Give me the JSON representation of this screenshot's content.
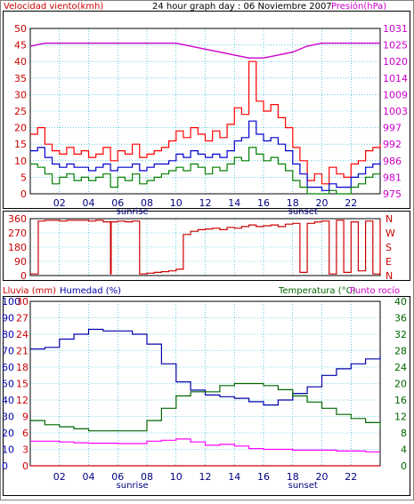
{
  "header": {
    "wind_label": "Velocidad viento(kmh)",
    "title": "24 hour graph day : 06 Noviembre 2007",
    "pressure_label": "Presión(hPa)"
  },
  "lower_header": {
    "rain_label": "Lluvia (mm)",
    "humidity_label": "Humedad (%)",
    "temp_label": "Temperatura (°C)",
    "dew_label": "Punto rocío"
  },
  "colors": {
    "wind_gust": "#ff0000",
    "wind_avg": "#0000cc",
    "wind_min": "#008000",
    "pressure": "#cc00cc",
    "direction": "#cc0000",
    "humidity": "#0000aa",
    "temperature": "#006600",
    "dew_point": "#ff00ff",
    "rain": "#cc0000",
    "grid": "#00aacc",
    "frame": "#000000"
  },
  "chart_data": [
    {
      "type": "line",
      "id": "wind-pressure",
      "x_ticks": [
        "02",
        "04",
        "06",
        "08",
        "10",
        "12",
        "14",
        "16",
        "18",
        "20",
        "22"
      ],
      "x_sub_labels": [
        {
          "text": "sunrise",
          "at_hour": 7.0
        },
        {
          "text": "sunset",
          "at_hour": 18.7
        }
      ],
      "x_range": [
        0,
        24
      ],
      "left_axis": {
        "label": "Velocidad viento(kmh)",
        "ticks": [
          0,
          5,
          10,
          15,
          20,
          25,
          30,
          35,
          40,
          45,
          50
        ],
        "range": [
          0,
          50
        ]
      },
      "right_axis": {
        "label": "Presión(hPa)",
        "ticks": [
          975,
          981,
          986,
          992,
          997,
          1003,
          1009,
          1014,
          1020,
          1025,
          1031
        ],
        "range": [
          975,
          1031
        ]
      },
      "series": [
        {
          "role": "gust",
          "axis": "left",
          "x": [
            0,
            0.5,
            1,
            1.5,
            2,
            2.5,
            3,
            3.5,
            4,
            4.5,
            5,
            5.5,
            6,
            6.5,
            7,
            7.5,
            8,
            8.5,
            9,
            9.5,
            10,
            10.5,
            11,
            11.5,
            12,
            12.5,
            13,
            13.5,
            14,
            14.5,
            15,
            15.5,
            16,
            16.5,
            17,
            17.5,
            18,
            18.5,
            19,
            19.5,
            20,
            20.5,
            21,
            21.5,
            22,
            22.5,
            23,
            23.5,
            24
          ],
          "y": [
            18,
            20,
            15,
            13,
            12,
            14,
            12,
            13,
            11,
            12,
            14,
            10,
            13,
            12,
            15,
            11,
            12,
            13,
            14,
            16,
            19,
            17,
            20,
            18,
            16,
            19,
            17,
            21,
            26,
            24,
            40,
            28,
            25,
            27,
            23,
            20,
            14,
            10,
            4,
            6,
            3,
            8,
            6,
            5,
            9,
            10,
            13,
            14,
            15
          ]
        },
        {
          "role": "average",
          "axis": "left",
          "x": [
            0,
            0.5,
            1,
            1.5,
            2,
            2.5,
            3,
            3.5,
            4,
            4.5,
            5,
            5.5,
            6,
            6.5,
            7,
            7.5,
            8,
            8.5,
            9,
            9.5,
            10,
            10.5,
            11,
            11.5,
            12,
            12.5,
            13,
            13.5,
            14,
            14.5,
            15,
            15.5,
            16,
            16.5,
            17,
            17.5,
            18,
            18.5,
            19,
            19.5,
            20,
            20.5,
            21,
            21.5,
            22,
            22.5,
            23,
            23.5,
            24
          ],
          "y": [
            13,
            14,
            11,
            9,
            8,
            9,
            8,
            8,
            7,
            8,
            9,
            7,
            8,
            8,
            9,
            7,
            8,
            9,
            9,
            10,
            12,
            11,
            13,
            12,
            11,
            12,
            11,
            13,
            16,
            17,
            22,
            18,
            16,
            17,
            15,
            13,
            9,
            6,
            2,
            2,
            1,
            3,
            2,
            2,
            5,
            6,
            8,
            9,
            10
          ]
        },
        {
          "role": "minimum",
          "axis": "left",
          "x": [
            0,
            0.5,
            1,
            1.5,
            2,
            2.5,
            3,
            3.5,
            4,
            4.5,
            5,
            5.5,
            6,
            6.5,
            7,
            7.5,
            8,
            8.5,
            9,
            9.5,
            10,
            10.5,
            11,
            11.5,
            12,
            12.5,
            13,
            13.5,
            14,
            14.5,
            15,
            15.5,
            16,
            16.5,
            17,
            17.5,
            18,
            18.5,
            19,
            19.5,
            20,
            20.5,
            21,
            21.5,
            22,
            22.5,
            23,
            23.5,
            24
          ],
          "y": [
            9,
            8,
            6,
            3,
            5,
            6,
            4,
            5,
            4,
            5,
            6,
            2,
            5,
            4,
            6,
            3,
            4,
            5,
            6,
            7,
            8,
            7,
            9,
            8,
            6,
            8,
            7,
            9,
            11,
            10,
            14,
            12,
            10,
            11,
            9,
            7,
            4,
            2,
            0,
            0,
            0,
            1,
            0,
            0,
            2,
            3,
            5,
            6,
            6
          ]
        },
        {
          "role": "pressure",
          "axis": "right",
          "x": [
            0,
            1,
            2,
            3,
            4,
            5,
            6,
            7,
            8,
            9,
            10,
            11,
            12,
            13,
            14,
            15,
            16,
            17,
            18,
            19,
            20,
            21,
            22,
            23,
            24
          ],
          "y": [
            1025,
            1026,
            1026,
            1026,
            1026,
            1026,
            1026,
            1026,
            1026,
            1026,
            1026,
            1025,
            1024,
            1023,
            1022,
            1021,
            1021,
            1022,
            1023,
            1025,
            1026,
            1026,
            1026,
            1026,
            1026
          ]
        }
      ]
    },
    {
      "type": "line",
      "id": "wind-direction",
      "x_range": [
        0,
        24
      ],
      "left_axis": {
        "ticks": [
          0,
          90,
          180,
          270,
          360
        ],
        "range": [
          0,
          360
        ]
      },
      "right_axis": {
        "ticks": [
          "N",
          "W",
          "S",
          "E",
          "N"
        ]
      },
      "series": [
        {
          "role": "direction",
          "x": [
            0,
            0.5,
            0.55,
            1,
            1.5,
            2,
            2.5,
            3,
            3.5,
            4,
            4.5,
            5,
            5.5,
            5.55,
            6,
            6.5,
            7,
            7.5,
            8,
            8.5,
            9,
            9.5,
            10,
            10.5,
            11,
            11.5,
            12,
            12.5,
            13,
            13.5,
            14,
            14.5,
            15,
            15.5,
            16,
            16.5,
            17,
            17.5,
            18,
            18.5,
            19,
            19.5,
            20,
            20.5,
            21,
            21.5,
            22,
            22.5,
            23,
            23.5,
            24
          ],
          "y": [
            10,
            10,
            345,
            350,
            350,
            345,
            350,
            350,
            350,
            345,
            350,
            340,
            10,
            340,
            345,
            340,
            345,
            10,
            15,
            20,
            25,
            30,
            40,
            260,
            280,
            290,
            295,
            300,
            290,
            305,
            300,
            310,
            320,
            310,
            315,
            320,
            310,
            325,
            330,
            20,
            330,
            340,
            345,
            10,
            350,
            20,
            340,
            30,
            345,
            10,
            350
          ]
        }
      ]
    },
    {
      "type": "line",
      "id": "humidity-temperature",
      "x_ticks": [
        "02",
        "04",
        "06",
        "08",
        "10",
        "12",
        "14",
        "16",
        "18",
        "20",
        "22"
      ],
      "x_sub_labels": [
        {
          "text": "sunrise",
          "at_hour": 7.0
        },
        {
          "text": "sunset",
          "at_hour": 18.7
        }
      ],
      "x_range": [
        0,
        24
      ],
      "left_axis_rain": {
        "label": "Lluvia (mm)",
        "ticks": [
          0,
          3,
          6,
          9,
          12,
          15,
          18,
          21,
          24,
          27,
          30
        ],
        "range": [
          0,
          30
        ]
      },
      "left_axis_humidity": {
        "label": "Humedad (%)",
        "ticks": [
          0,
          10,
          20,
          30,
          40,
          50,
          60,
          70,
          80,
          90,
          100
        ],
        "range": [
          0,
          100
        ]
      },
      "right_axis": {
        "label": "Temperatura (°C)",
        "ticks": [
          0,
          4,
          8,
          12,
          16,
          20,
          24,
          28,
          32,
          36,
          40
        ],
        "range": [
          0,
          40
        ]
      },
      "series": [
        {
          "role": "humidity",
          "axis": "humidity",
          "x": [
            0,
            1,
            2,
            3,
            4,
            5,
            6,
            7,
            8,
            9,
            10,
            11,
            12,
            13,
            14,
            15,
            16,
            17,
            18,
            19,
            20,
            21,
            22,
            23,
            24
          ],
          "y": [
            71,
            72,
            77,
            80,
            83,
            82,
            82,
            80,
            74,
            62,
            51,
            46,
            43,
            42,
            41,
            39,
            37,
            40,
            44,
            48,
            55,
            59,
            62,
            65,
            67
          ]
        },
        {
          "role": "temperature",
          "axis": "temperature",
          "x": [
            0,
            1,
            2,
            3,
            4,
            5,
            6,
            7,
            8,
            9,
            10,
            11,
            12,
            13,
            14,
            15,
            16,
            17,
            18,
            19,
            20,
            21,
            22,
            23,
            24
          ],
          "y": [
            11,
            10,
            9.5,
            9,
            8.5,
            8.5,
            8.5,
            8.5,
            11,
            14,
            17,
            18,
            18,
            19.5,
            20,
            20,
            19.5,
            18.5,
            17,
            15.5,
            14,
            12.5,
            11.5,
            10.5,
            9
          ]
        },
        {
          "role": "dew_point",
          "axis": "temperature",
          "x": [
            0,
            1,
            2,
            3,
            4,
            5,
            6,
            7,
            8,
            9,
            10,
            11,
            12,
            13,
            14,
            15,
            16,
            17,
            18,
            19,
            20,
            21,
            22,
            23,
            24
          ],
          "y": [
            6,
            6,
            5.8,
            5.6,
            5.5,
            5.5,
            5.4,
            5.4,
            6,
            6.2,
            6.5,
            5.8,
            5,
            5.2,
            4.8,
            4.2,
            4,
            4,
            3.8,
            3.8,
            3.8,
            3.6,
            3.6,
            3.4,
            3.4
          ]
        },
        {
          "role": "rain",
          "axis": "rain",
          "x": [
            0,
            24
          ],
          "y": [
            0,
            0
          ]
        }
      ]
    }
  ]
}
